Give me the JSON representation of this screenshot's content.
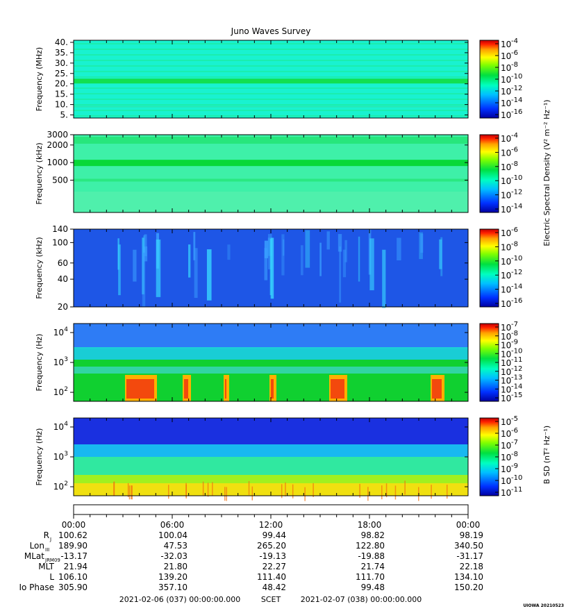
{
  "title": "Juno Waves Survey",
  "stamp": "UIOWA 20210523",
  "cb_labels": {
    "electric": "Electric Spectral Density (V² m⁻² Hz⁻¹)",
    "magnetic": "B SD (nT² Hz⁻¹)"
  },
  "panels": [
    {
      "ylabel": "Frequency (MHz)",
      "yscale": "linear",
      "ylim": [
        3.5,
        41
      ],
      "yticks": [
        {
          "v": 40,
          "t": "40."
        },
        {
          "v": 35,
          "t": "35."
        },
        {
          "v": 30,
          "t": "30."
        },
        {
          "v": 25,
          "t": "25."
        },
        {
          "v": 20,
          "t": "20."
        },
        {
          "v": 15,
          "t": "15."
        },
        {
          "v": 10,
          "t": "10."
        },
        {
          "v": 5,
          "t": "5."
        }
      ],
      "cbar": [
        "-4",
        "-6",
        "-8",
        "-10",
        "-12",
        "-14",
        "-16"
      ],
      "colors": {
        "bg": "#19f2d0",
        "bands": "#20e870",
        "strong": "#12e050"
      }
    },
    {
      "ylabel": "Frequency (kHz)",
      "yscale": "log",
      "ylim": [
        140,
        3000
      ],
      "yticks": [
        {
          "v": 3000,
          "t": "3000"
        },
        {
          "v": 2000,
          "t": "2000"
        },
        {
          "v": 1000,
          "t": "1000"
        },
        {
          "v": 500,
          "t": "500"
        }
      ],
      "cbar": [
        "-4",
        "-6",
        "-8",
        "-10",
        "-12",
        "-14"
      ],
      "colors": {
        "bg": "#3ef0a8",
        "bands": "#22e470",
        "strong": "#08d838"
      }
    },
    {
      "ylabel": "Frequency (kHz)",
      "yscale": "log",
      "ylim": [
        20,
        140
      ],
      "yticks": [
        {
          "v": 140,
          "t": "140"
        },
        {
          "v": 100,
          "t": "100"
        },
        {
          "v": 60,
          "t": "60"
        },
        {
          "v": 40,
          "t": "40"
        },
        {
          "v": 20,
          "t": "20"
        }
      ],
      "cbar": [
        "-6",
        "-8",
        "-10",
        "-12",
        "-14",
        "-16"
      ],
      "colors": {
        "bg": "#1e56e6",
        "bands": "#3aa0ff",
        "strong": "#38d8ff"
      }
    },
    {
      "ylabel": "Frequency (Hz)",
      "yscale": "log",
      "ylim": [
        50,
        20000
      ],
      "yticks": [
        {
          "v": 10000,
          "t": "10",
          "e": "4"
        },
        {
          "v": 1000,
          "t": "10",
          "e": "3"
        },
        {
          "v": 100,
          "t": "10",
          "e": "2"
        }
      ],
      "cbar": [
        "-7",
        "-8",
        "-9",
        "-10",
        "-11",
        "-12",
        "-13",
        "-14",
        "-15"
      ],
      "colors": {
        "bg": "#1e60f0",
        "bands": "#19e0d0",
        "strong": "#10d030"
      }
    },
    {
      "ylabel": "Frequency (Hz)",
      "yscale": "log",
      "ylim": [
        50,
        20000
      ],
      "yticks": [
        {
          "v": 10000,
          "t": "10",
          "e": "4"
        },
        {
          "v": 1000,
          "t": "10",
          "e": "3"
        },
        {
          "v": 100,
          "t": "10",
          "e": "2"
        }
      ],
      "cbar": [
        "-5",
        "-6",
        "-7",
        "-8",
        "-9",
        "-10",
        "-11"
      ],
      "colors": {
        "bg": "#1a30e0",
        "bands": "#30e8a0",
        "strong": "#f0e010"
      }
    }
  ],
  "cbar_base": "10",
  "time_ticks": [
    "00:00",
    "06:00",
    "12:00",
    "18:00",
    "00:00"
  ],
  "ephemeris": [
    {
      "label": "R",
      "sub": "J",
      "values": [
        "100.62",
        "100.04",
        "99.44",
        "98.82",
        "98.19"
      ]
    },
    {
      "label": "Lon",
      "sub": "III",
      "values": [
        "189.90",
        "47.53",
        "265.20",
        "122.80",
        "340.50"
      ]
    },
    {
      "label": "MLat",
      "sub": "JRM09",
      "values": [
        "-13.17",
        "-32.03",
        "-19.13",
        "-19.88",
        "-31.17"
      ]
    },
    {
      "label": "MLT",
      "sub": "",
      "values": [
        "21.94",
        "21.80",
        "22.27",
        "21.74",
        "22.18"
      ]
    },
    {
      "label": "L",
      "sub": "",
      "values": [
        "106.10",
        "139.20",
        "111.40",
        "111.70",
        "134.10"
      ]
    },
    {
      "label": "Io Phase",
      "sub": "",
      "values": [
        "305.90",
        "357.10",
        "48.42",
        "99.48",
        "150.20"
      ]
    }
  ],
  "footer": {
    "start": "2021-02-06 (037) 00:00:00.000",
    "scet": "SCET",
    "end": "2021-02-07 (038) 00:00:00.000"
  },
  "chart_data": {
    "type": "heatmap",
    "title": "Juno Waves Survey",
    "xlabel": "SCET",
    "x_ticks": [
      "00:00",
      "06:00",
      "12:00",
      "18:00",
      "00:00"
    ],
    "xlim": [
      "2021-02-06 00:00",
      "2021-02-07 00:00"
    ],
    "panels": [
      {
        "ylabel": "Frequency (MHz)",
        "ylim": [
          5,
          40
        ],
        "yscale": "linear",
        "colorbar": "10^-16 to 10^-4"
      },
      {
        "ylabel": "Frequency (kHz)",
        "ylim": [
          140,
          3000
        ],
        "yscale": "log",
        "colorbar": "10^-14 to 10^-4"
      },
      {
        "ylabel": "Frequency (kHz)",
        "ylim": [
          20,
          140
        ],
        "yscale": "log",
        "colorbar": "10^-16 to 10^-6"
      },
      {
        "ylabel": "Frequency (Hz)",
        "ylim": [
          50,
          20000
        ],
        "yscale": "log",
        "colorbar": "10^-15 to 10^-7"
      },
      {
        "ylabel": "Frequency (Hz)",
        "ylim": [
          50,
          20000
        ],
        "yscale": "log",
        "colorbar": "10^-11 to 10^-5"
      }
    ],
    "colorbar_labels": [
      "Electric Spectral Density (V² m⁻² Hz⁻¹)",
      "B SD (nT² Hz⁻¹)"
    ],
    "colormap": [
      "#0000a0",
      "#0030ff",
      "#00c0ff",
      "#00ffc0",
      "#00e040",
      "#80ff00",
      "#ffff00",
      "#ffa000",
      "#ff2000",
      "#c00000"
    ],
    "grid": false,
    "legend": "none"
  }
}
